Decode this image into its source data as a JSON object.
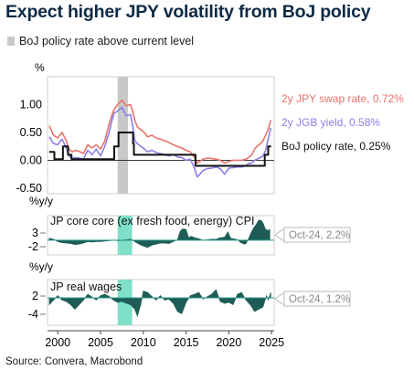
{
  "title": "Expect higher JPY volatility from BoJ policy",
  "legend": {
    "shaded_label": "BoJ policy rate above current level",
    "shaded_color": "#c8c8c8"
  },
  "source": "Source: Convera, Macrobond",
  "chart_data": [
    {
      "type": "line",
      "ylabel": "%",
      "ylim": [
        -0.6,
        1.5
      ],
      "yticks": [
        "1.00",
        "0.50",
        "0.00",
        "-0.50"
      ],
      "shaded_periods": [
        [
          2007.0,
          2008.2
        ]
      ],
      "series": [
        {
          "name": "2y JPY swap rate",
          "end_label": "2y JPY swap rate, 0.72%",
          "color": "#e8736c",
          "x": [
            1999.0,
            1999.5,
            2000.0,
            2000.5,
            2001.0,
            2001.3,
            2001.7,
            2002.0,
            2002.5,
            2003.0,
            2003.5,
            2004.0,
            2004.5,
            2005.0,
            2005.5,
            2006.0,
            2006.3,
            2006.6,
            2007.0,
            2007.5,
            2008.0,
            2008.5,
            2008.8,
            2009.0,
            2009.3,
            2009.7,
            2010.0,
            2010.5,
            2011.0,
            2011.5,
            2012.0,
            2012.5,
            2013.0,
            2013.5,
            2014.0,
            2014.5,
            2015.0,
            2015.5,
            2016.0,
            2016.3,
            2016.6,
            2017.0,
            2017.5,
            2018.0,
            2018.5,
            2019.0,
            2019.5,
            2020.0,
            2020.5,
            2021.0,
            2021.5,
            2022.0,
            2022.3,
            2022.7,
            2023.0,
            2023.3,
            2023.7,
            2024.0,
            2024.3,
            2024.6,
            2024.9
          ],
          "values": [
            0.62,
            0.45,
            0.4,
            0.5,
            0.35,
            0.2,
            0.15,
            0.18,
            0.16,
            0.12,
            0.28,
            0.22,
            0.28,
            0.2,
            0.35,
            0.65,
            0.8,
            0.92,
            1.0,
            1.08,
            0.98,
            1.0,
            0.85,
            0.72,
            0.6,
            0.55,
            0.52,
            0.42,
            0.45,
            0.4,
            0.38,
            0.35,
            0.32,
            0.28,
            0.25,
            0.22,
            0.18,
            0.15,
            0.05,
            -0.05,
            -0.02,
            0.02,
            0.04,
            0.03,
            0.02,
            0.0,
            -0.05,
            -0.02,
            0.0,
            0.0,
            0.0,
            0.02,
            0.05,
            0.1,
            0.2,
            0.25,
            0.3,
            0.35,
            0.45,
            0.55,
            0.72
          ]
        },
        {
          "name": "2y JGB yield",
          "end_label": "2y JGB yield, 0.58%",
          "color": "#8c7fe8",
          "x": [
            1999.0,
            1999.5,
            2000.0,
            2000.5,
            2001.0,
            2001.3,
            2001.7,
            2002.0,
            2002.5,
            2003.0,
            2003.5,
            2004.0,
            2004.5,
            2005.0,
            2005.5,
            2006.0,
            2006.3,
            2006.6,
            2007.0,
            2007.5,
            2008.0,
            2008.5,
            2008.8,
            2009.0,
            2009.3,
            2009.7,
            2010.0,
            2010.5,
            2011.0,
            2011.5,
            2012.0,
            2012.5,
            2013.0,
            2013.5,
            2014.0,
            2014.5,
            2015.0,
            2015.5,
            2016.0,
            2016.3,
            2016.6,
            2017.0,
            2017.5,
            2018.0,
            2018.5,
            2019.0,
            2019.5,
            2020.0,
            2020.5,
            2021.0,
            2021.5,
            2022.0,
            2022.3,
            2022.7,
            2023.0,
            2023.3,
            2023.7,
            2024.0,
            2024.3,
            2024.6,
            2024.9
          ],
          "values": [
            0.42,
            0.3,
            0.28,
            0.38,
            0.22,
            0.08,
            0.03,
            0.05,
            0.04,
            0.02,
            0.18,
            0.1,
            0.2,
            0.08,
            0.25,
            0.5,
            0.7,
            0.85,
            0.88,
            0.95,
            0.8,
            0.82,
            0.58,
            0.35,
            0.3,
            0.25,
            0.22,
            0.15,
            0.18,
            0.14,
            0.12,
            0.1,
            0.08,
            0.1,
            0.06,
            0.05,
            0.0,
            0.02,
            -0.15,
            -0.3,
            -0.25,
            -0.18,
            -0.15,
            -0.14,
            -0.12,
            -0.15,
            -0.25,
            -0.14,
            -0.13,
            -0.12,
            -0.12,
            -0.1,
            -0.06,
            -0.05,
            0.0,
            0.02,
            0.05,
            0.08,
            0.18,
            0.38,
            0.58
          ]
        },
        {
          "name": "BoJ policy rate",
          "end_label": "BoJ policy rate, 0.25%",
          "color": "#111111",
          "step": true,
          "x": [
            1999.0,
            1999.6,
            2000.6,
            2001.2,
            2001.6,
            2006.6,
            2007.1,
            2008.8,
            2008.9,
            2010.0,
            2016.1,
            2024.2,
            2024.6,
            2024.95
          ],
          "values": [
            0.15,
            0.02,
            0.25,
            0.1,
            0.02,
            0.25,
            0.5,
            0.3,
            0.1,
            0.1,
            -0.1,
            0.1,
            0.25,
            0.25
          ]
        }
      ]
    },
    {
      "type": "area",
      "title": "JP core core (ex fresh food, energy) CPI",
      "ylabel": "%y/y",
      "yticks": [
        "3",
        "-2"
      ],
      "ylim": [
        -3,
        5
      ],
      "color": "#1e5c56",
      "shaded_periods": [
        [
          2007.0,
          2008.7
        ]
      ],
      "shaded_color": "#7fe0c8",
      "callout": "Oct-24, 2.2%",
      "series": [
        {
          "x": [
            1999.0,
            1999.5,
            2000.0,
            2000.5,
            2001.0,
            2001.5,
            2002.0,
            2002.5,
            2003.0,
            2003.5,
            2004.0,
            2004.5,
            2005.0,
            2005.5,
            2006.0,
            2006.5,
            2007.0,
            2007.5,
            2008.0,
            2008.5,
            2009.0,
            2009.5,
            2010.0,
            2010.5,
            2011.0,
            2011.5,
            2012.0,
            2012.5,
            2013.0,
            2013.5,
            2014.0,
            2014.3,
            2014.6,
            2015.0,
            2015.3,
            2015.6,
            2016.0,
            2016.5,
            2017.0,
            2017.5,
            2018.0,
            2018.5,
            2019.0,
            2019.5,
            2019.9,
            2020.2,
            2020.5,
            2021.0,
            2021.4,
            2021.8,
            2022.0,
            2022.3,
            2022.6,
            2022.9,
            2023.2,
            2023.5,
            2023.8,
            2024.0,
            2024.3,
            2024.6,
            2024.8
          ],
          "values": [
            0.4,
            0.2,
            -0.3,
            -0.5,
            -0.6,
            -0.7,
            -0.9,
            -0.8,
            -0.6,
            -0.3,
            -0.4,
            -0.3,
            -0.3,
            -0.2,
            -0.1,
            0.0,
            -0.1,
            0.0,
            0.1,
            0.2,
            -0.3,
            -0.8,
            -1.2,
            -1.5,
            -1.0,
            -0.8,
            -0.6,
            -0.6,
            -0.7,
            -0.3,
            0.1,
            1.8,
            2.3,
            2.2,
            0.5,
            0.8,
            0.5,
            0.3,
            0.0,
            0.1,
            0.2,
            0.2,
            0.5,
            0.6,
            1.7,
            0.4,
            0.3,
            0.1,
            -0.5,
            -0.8,
            -0.7,
            0.3,
            1.5,
            2.5,
            3.2,
            4.1,
            4.0,
            3.5,
            2.2,
            2.0,
            2.2
          ]
        }
      ]
    },
    {
      "type": "area",
      "title": "JP real wages",
      "ylabel": "%y/y",
      "yticks": [
        "2",
        "-4"
      ],
      "ylim": [
        -6,
        4
      ],
      "color": "#1e5c56",
      "shaded_periods": [
        [
          2007.0,
          2008.7
        ]
      ],
      "shaded_color": "#7fe0c8",
      "callout": "Oct-24, 1.2%",
      "series": [
        {
          "x": [
            1999.0,
            1999.5,
            2000.0,
            2000.5,
            2001.0,
            2001.5,
            2002.0,
            2002.5,
            2003.0,
            2003.5,
            2004.0,
            2004.5,
            2005.0,
            2005.5,
            2006.0,
            2006.5,
            2007.0,
            2007.5,
            2008.0,
            2008.5,
            2009.0,
            2009.3,
            2009.7,
            2010.0,
            2010.5,
            2011.0,
            2011.5,
            2012.0,
            2012.5,
            2013.0,
            2013.5,
            2014.0,
            2014.5,
            2015.0,
            2015.5,
            2016.0,
            2016.5,
            2017.0,
            2017.5,
            2018.0,
            2018.5,
            2019.0,
            2019.5,
            2020.0,
            2020.5,
            2021.0,
            2021.5,
            2022.0,
            2022.5,
            2023.0,
            2023.5,
            2024.0,
            2024.4,
            2024.6,
            2024.9
          ],
          "values": [
            -1.5,
            -0.5,
            0.5,
            -0.5,
            -0.8,
            -1.5,
            -2.5,
            -1.5,
            -0.5,
            0.8,
            0.2,
            -0.5,
            0.5,
            0.8,
            0.3,
            -0.5,
            -1.0,
            -0.8,
            -1.2,
            -1.5,
            -2.5,
            -4.0,
            -1.5,
            1.5,
            1.2,
            0.3,
            -0.5,
            0.5,
            -0.5,
            -0.3,
            -1.2,
            -3.0,
            -3.5,
            -1.0,
            0.5,
            0.8,
            1.2,
            -0.3,
            0.3,
            0.8,
            1.8,
            -0.8,
            -1.2,
            -1.0,
            -1.5,
            0.8,
            1.2,
            -0.5,
            -1.5,
            -3.0,
            -2.5,
            -2.0,
            0.5,
            -0.5,
            1.2
          ]
        }
      ]
    }
  ],
  "x_axis": {
    "xlim": [
      1998.8,
      2025.3
    ],
    "ticks": [
      2000,
      2005,
      2010,
      2015,
      2020,
      2025
    ]
  }
}
